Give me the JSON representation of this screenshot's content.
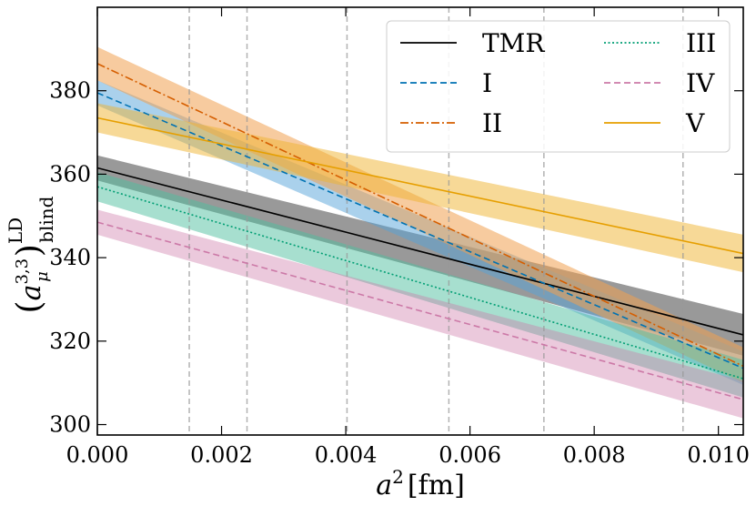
{
  "chart_data": {
    "type": "line",
    "title": "",
    "xlabel": {
      "base": "a",
      "sup": "2",
      "unit": "[fm]"
    },
    "ylabel": {
      "open": "(",
      "base": "a",
      "sub_mu": "μ",
      "sup_indices": "3,3",
      "close": ")",
      "sup": "LD",
      "sub": "blind"
    },
    "xlim": [
      0.0,
      0.0104
    ],
    "ylim": [
      297.5,
      400
    ],
    "x_ticks": [
      0.0,
      0.002,
      0.004,
      0.006,
      0.008,
      0.01
    ],
    "x_tick_labels": [
      "0.000",
      "0.002",
      "0.004",
      "0.006",
      "0.008",
      "0.010"
    ],
    "y_ticks": [
      300,
      320,
      340,
      360,
      380
    ],
    "y_tick_labels": [
      "300",
      "320",
      "340",
      "360",
      "380"
    ],
    "vertical_lines": [
      0.00148,
      0.00241,
      0.00402,
      0.00566,
      0.00719,
      0.00943
    ],
    "legend_position": "top-right",
    "series": [
      {
        "name": "TMR",
        "color": "#000000",
        "dash": "solid",
        "band_color": "#555555",
        "band_opacity": 0.6,
        "x": [
          0.0,
          0.0104
        ],
        "y": [
          361.5,
          321.5
        ],
        "y_lower": [
          358.5,
          316.5
        ],
        "y_upper": [
          364.5,
          326.5
        ]
      },
      {
        "name": "I",
        "color": "#0072b2",
        "dash": "dashed",
        "band_color": "#56a3d9",
        "band_opacity": 0.5,
        "x": [
          0.0,
          0.0104
        ],
        "y": [
          379.5,
          313.5
        ],
        "y_lower": [
          376.5,
          309.5
        ],
        "y_upper": [
          382.5,
          317.5
        ]
      },
      {
        "name": "II",
        "color": "#d55e00",
        "dash": "dashdot",
        "band_color": "#f0a050",
        "band_opacity": 0.55,
        "x": [
          0.0,
          0.0104
        ],
        "y": [
          386.5,
          314.0
        ],
        "y_lower": [
          382.5,
          310.0
        ],
        "y_upper": [
          390.5,
          318.5
        ]
      },
      {
        "name": "III",
        "color": "#009e73",
        "dash": "dotted",
        "band_color": "#4fc0a0",
        "band_opacity": 0.5,
        "x": [
          0.0,
          0.0104
        ],
        "y": [
          357.0,
          311.0
        ],
        "y_lower": [
          353.5,
          306.5
        ],
        "y_upper": [
          360.5,
          315.5
        ]
      },
      {
        "name": "IV",
        "color": "#cc79a7",
        "dash": "dashed",
        "band_color": "#cc79a7",
        "band_opacity": 0.4,
        "x": [
          0.0,
          0.0104
        ],
        "y": [
          348.5,
          306.0
        ],
        "y_lower": [
          345.5,
          301.5
        ],
        "y_upper": [
          351.5,
          310.5
        ]
      },
      {
        "name": "V",
        "color": "#e69f00",
        "dash": "solid",
        "band_color": "#f0b430",
        "band_opacity": 0.5,
        "x": [
          0.0,
          0.0104
        ],
        "y": [
          373.5,
          341.0
        ],
        "y_lower": [
          370.0,
          336.5
        ],
        "y_upper": [
          377.0,
          345.5
        ]
      }
    ]
  }
}
